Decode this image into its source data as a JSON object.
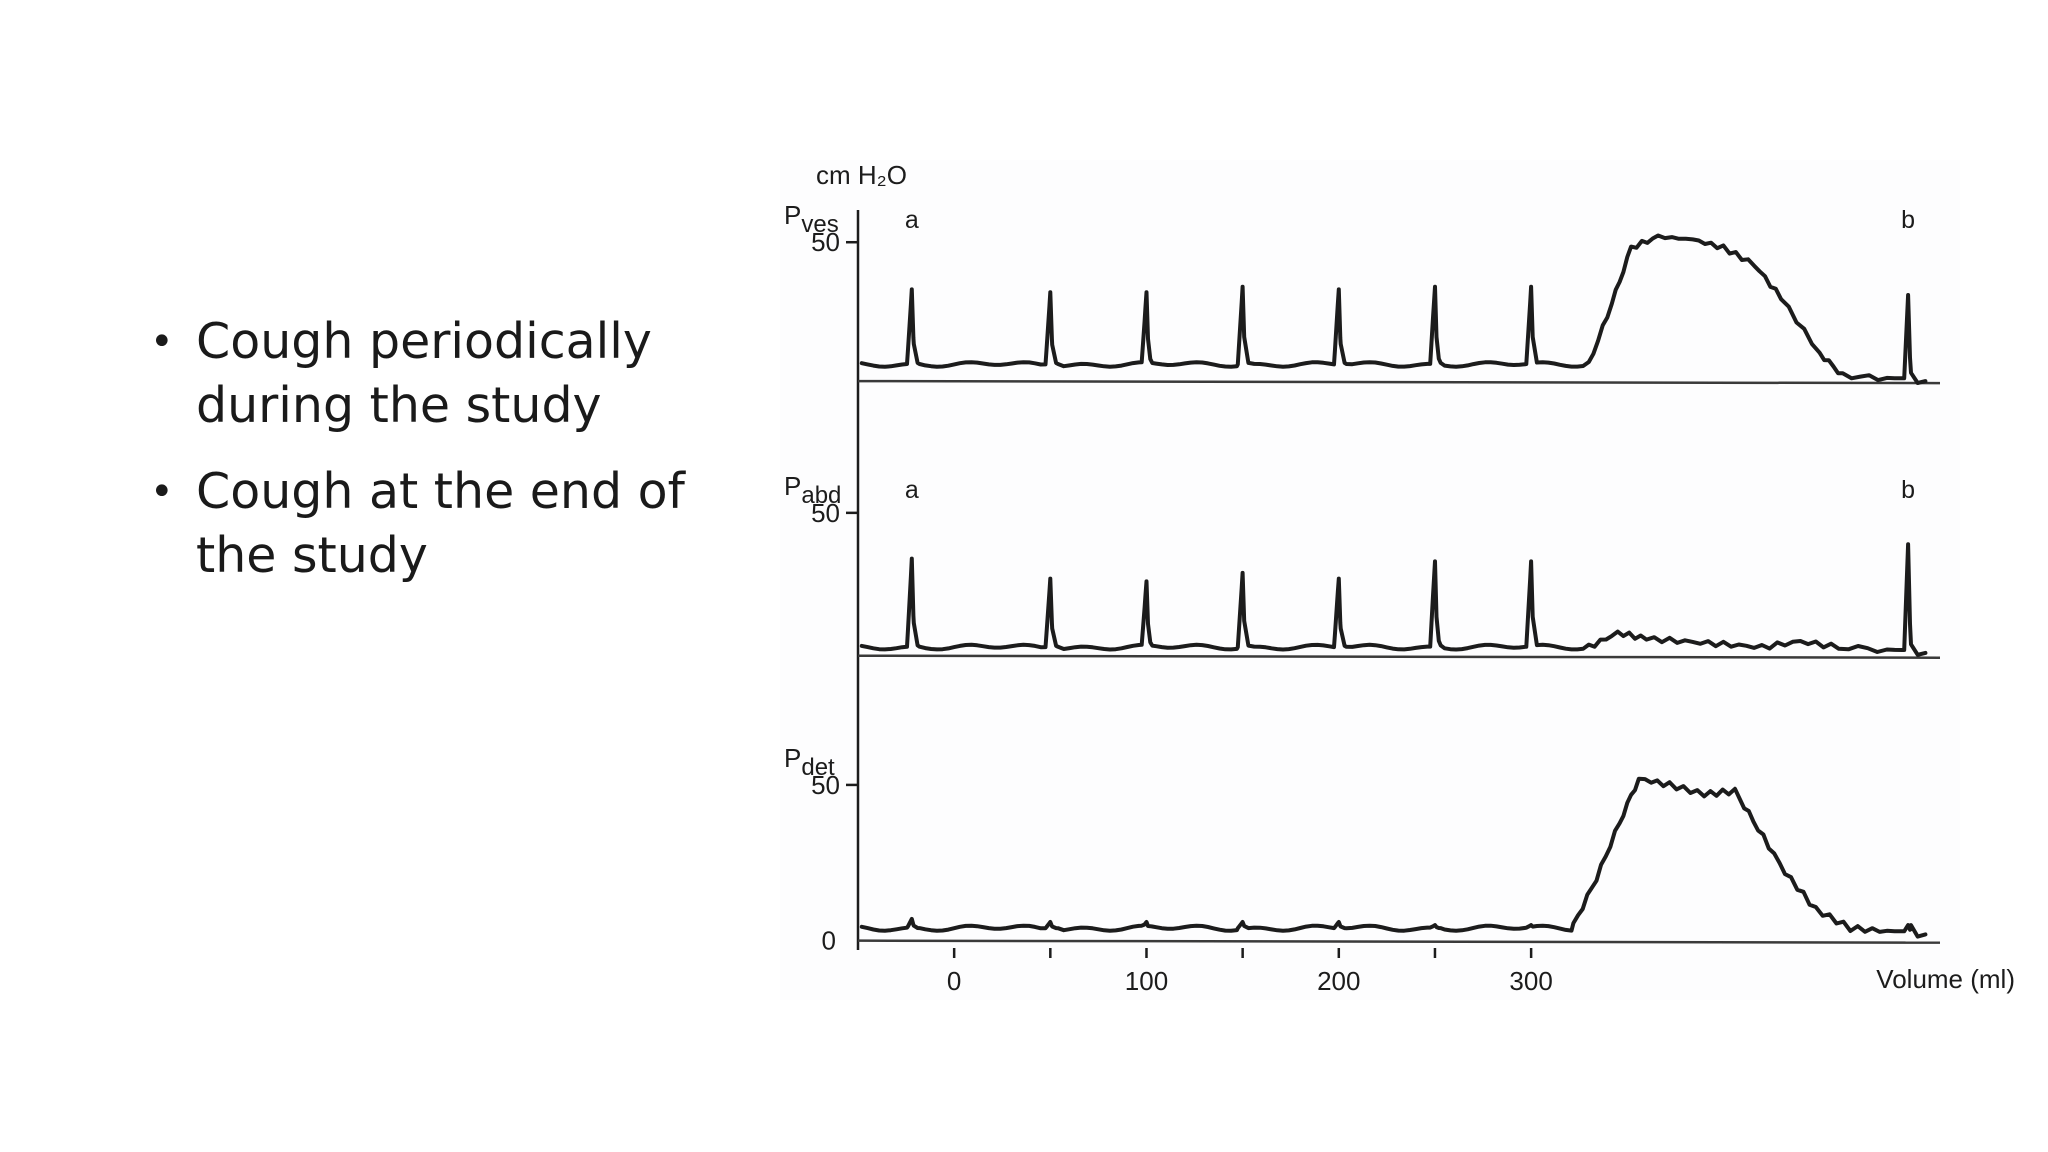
{
  "bullets": [
    "Cough periodically during the study",
    "Cough at the end of the study"
  ],
  "chart_data": {
    "type": "line",
    "unit_label": "cm H₂O",
    "xlabel": "Volume (ml)",
    "x_ticks": [
      "0",
      "100",
      "200",
      "300"
    ],
    "xlim": [
      -50,
      510
    ],
    "panels": [
      {
        "name": "Pves",
        "label_main": "P",
        "label_sub": "ves",
        "ytick_label": "50",
        "ytick_value": 50,
        "ylim": [
          -5,
          58
        ],
        "markers": [
          {
            "text": "a",
            "x": -22
          },
          {
            "text": "b",
            "x": 496
          }
        ],
        "baseline": 6,
        "coughs": [
          {
            "x": -22,
            "h": 27
          },
          {
            "x": 50,
            "h": 26
          },
          {
            "x": 100,
            "h": 26
          },
          {
            "x": 150,
            "h": 28
          },
          {
            "x": 200,
            "h": 27
          },
          {
            "x": 250,
            "h": 28
          },
          {
            "x": 300,
            "h": 28
          },
          {
            "x": 496,
            "h": 30
          }
        ],
        "plateau": [
          [
            330,
            6
          ],
          [
            342,
            28
          ],
          [
            352,
            48
          ],
          [
            366,
            52
          ],
          [
            384,
            51
          ],
          [
            400,
            48
          ],
          [
            416,
            42
          ],
          [
            430,
            30
          ],
          [
            450,
            10
          ],
          [
            462,
            2
          ],
          [
            485,
            1
          ],
          [
            505,
            0
          ]
        ]
      },
      {
        "name": "Pabd",
        "label_main": "P",
        "label_sub": "abd",
        "ytick_label": "50",
        "ytick_value": 50,
        "ylim": [
          -5,
          58
        ],
        "markers": [
          {
            "text": "a",
            "x": -22
          },
          {
            "text": "b",
            "x": 496
          }
        ],
        "baseline": 3,
        "coughs": [
          {
            "x": -22,
            "h": 31
          },
          {
            "x": 50,
            "h": 24
          },
          {
            "x": 100,
            "h": 23
          },
          {
            "x": 150,
            "h": 26
          },
          {
            "x": 200,
            "h": 24
          },
          {
            "x": 250,
            "h": 30
          },
          {
            "x": 300,
            "h": 30
          },
          {
            "x": 496,
            "h": 37
          }
        ],
        "plateau": [
          [
            330,
            3
          ],
          [
            345,
            8
          ],
          [
            360,
            6
          ],
          [
            380,
            5
          ],
          [
            400,
            4
          ],
          [
            420,
            3
          ],
          [
            440,
            5
          ],
          [
            460,
            3
          ],
          [
            485,
            2
          ],
          [
            505,
            1
          ]
        ]
      },
      {
        "name": "Pdet",
        "label_main": "P",
        "label_sub": "det",
        "ytick_label": "50",
        "ytick_value": 50,
        "y0_label": "0",
        "ylim": [
          -3,
          58
        ],
        "markers": [],
        "baseline": 4,
        "coughs": [
          {
            "x": -22,
            "h": 3
          },
          {
            "x": 50,
            "h": 2
          },
          {
            "x": 100,
            "h": 2
          },
          {
            "x": 150,
            "h": 2
          },
          {
            "x": 200,
            "h": 2
          },
          {
            "x": 250,
            "h": 1
          },
          {
            "x": 300,
            "h": 1
          },
          {
            "x": 496,
            "h": 2
          }
        ],
        "plateau": [
          [
            322,
            5
          ],
          [
            334,
            20
          ],
          [
            346,
            38
          ],
          [
            356,
            52
          ],
          [
            372,
            50
          ],
          [
            390,
            47
          ],
          [
            406,
            48
          ],
          [
            418,
            36
          ],
          [
            432,
            22
          ],
          [
            448,
            10
          ],
          [
            466,
            4
          ],
          [
            485,
            3
          ],
          [
            505,
            2
          ]
        ]
      }
    ]
  }
}
